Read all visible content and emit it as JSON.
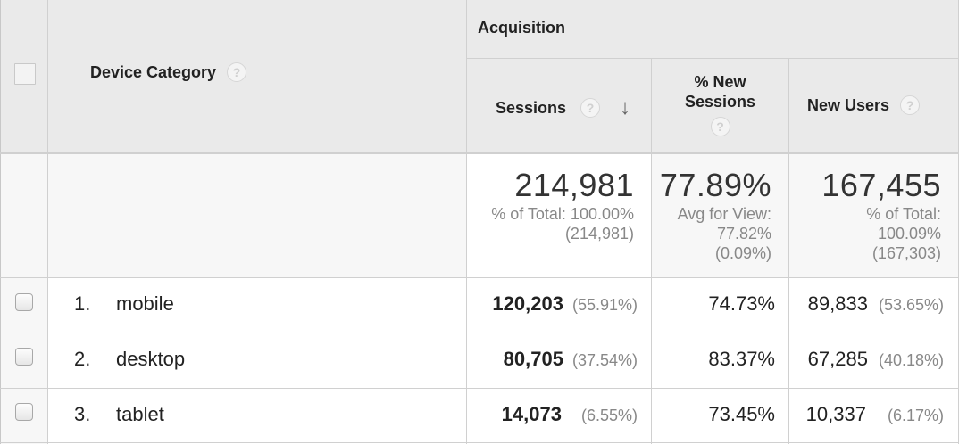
{
  "header": {
    "group_label": "Acquisition",
    "dimension_label": "Device Category",
    "help_glyph": "?",
    "sort_arrow": "↓",
    "columns": {
      "sessions": "Sessions",
      "new_sessions_line1": "% New",
      "new_sessions_line2": "Sessions",
      "new_users": "New Users"
    }
  },
  "totals": {
    "sessions": "214,981",
    "sessions_sub1": "% of Total: 100.00%",
    "sessions_sub2": "(214,981)",
    "new_sessions": "77.89%",
    "new_sessions_sub1": "Avg for View:",
    "new_sessions_sub2": "77.82%",
    "new_sessions_sub3": "(0.09%)",
    "new_users": "167,455",
    "new_users_sub1": "% of Total:",
    "new_users_sub2": "100.09%",
    "new_users_sub3": "(167,303)"
  },
  "rows": [
    {
      "index": "1.",
      "device": "mobile",
      "sessions": "120,203",
      "sessions_pct": "(55.91%)",
      "new_sessions": "74.73%",
      "new_users": "89,833",
      "new_users_pct": "(53.65%)"
    },
    {
      "index": "2.",
      "device": "desktop",
      "sessions": "80,705",
      "sessions_pct": "(37.54%)",
      "new_sessions": "83.37%",
      "new_users": "67,285",
      "new_users_pct": "(40.18%)"
    },
    {
      "index": "3.",
      "device": "tablet",
      "sessions": "14,073",
      "sessions_pct": "(6.55%)",
      "new_sessions": "73.45%",
      "new_users": "10,337",
      "new_users_pct": "(6.17%)"
    }
  ],
  "colors": {
    "header_bg": "#eaeaea",
    "totals_bg": "#f5f5f5",
    "border": "#d0d0d0",
    "muted_text": "#888888"
  }
}
